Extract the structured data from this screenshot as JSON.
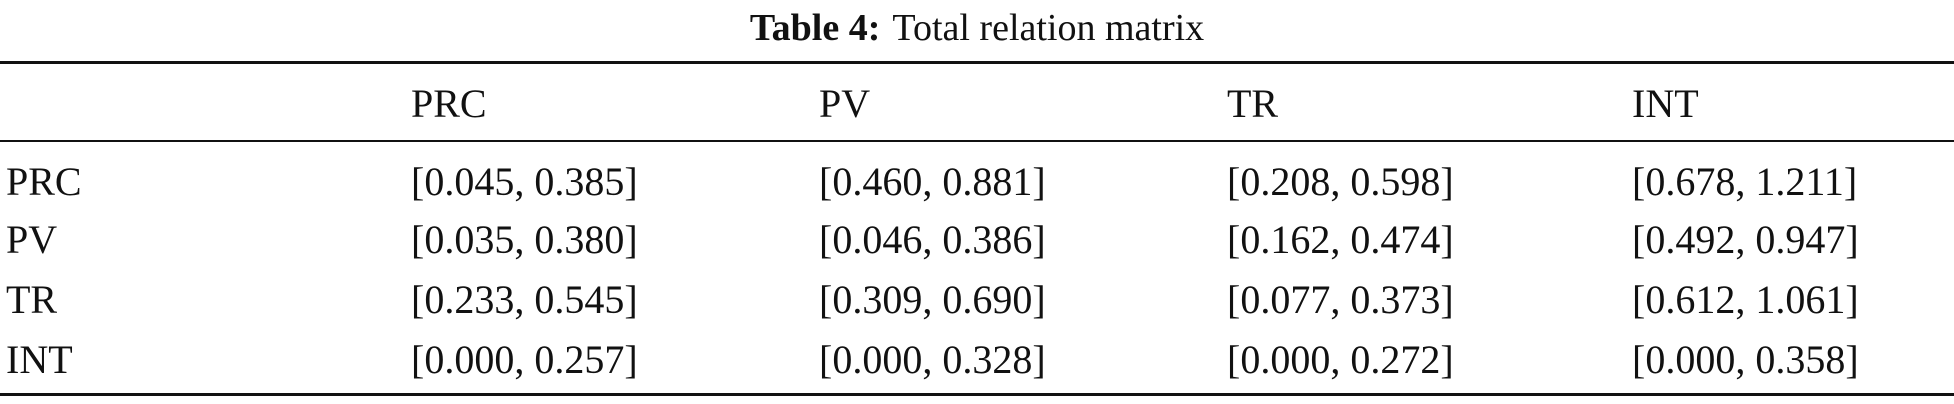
{
  "caption": {
    "label": "Table 4:",
    "text": "Total relation matrix"
  },
  "table": {
    "columns": [
      "PRC",
      "PV",
      "TR",
      "INT"
    ],
    "rows": [
      [
        "PRC",
        "[0.045, 0.385]",
        "[0.460, 0.881]",
        "[0.208, 0.598]",
        "[0.678, 1.211]"
      ],
      [
        "PV",
        "[0.035, 0.380]",
        "[0.046, 0.386]",
        "[0.162, 0.474]",
        "[0.492, 0.947]"
      ],
      [
        "TR",
        "[0.233, 0.545]",
        "[0.309, 0.690]",
        "[0.077, 0.373]",
        "[0.612, 1.061]"
      ],
      [
        "INT",
        "[0.000, 0.257]",
        "[0.000, 0.328]",
        "[0.000, 0.272]",
        "[0.000, 0.358]"
      ]
    ]
  }
}
